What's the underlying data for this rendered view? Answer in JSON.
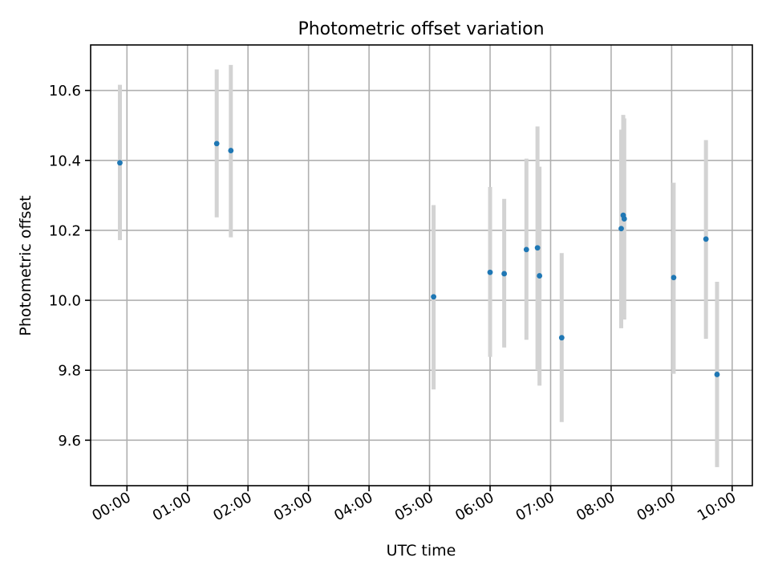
{
  "chart_data": {
    "type": "scatter",
    "title": "Photometric offset variation",
    "xlabel": "UTC time",
    "ylabel": "Photometric offset",
    "xlim": [
      "23:24",
      "10:20"
    ],
    "ylim": [
      9.47,
      10.73
    ],
    "x_ticks": [
      "00:00",
      "01:00",
      "02:00",
      "03:00",
      "04:00",
      "05:00",
      "06:00",
      "07:00",
      "08:00",
      "09:00",
      "10:00"
    ],
    "y_ticks": [
      "9.6",
      "9.8",
      "10.0",
      "10.2",
      "10.4",
      "10.6"
    ],
    "grid": true,
    "marker_color": "#1f77b4",
    "errorbar_color": "#d3d3d3",
    "points": [
      {
        "x": "23:53",
        "y": 10.393,
        "ylo": 10.172,
        "yhi": 10.616
      },
      {
        "x": "01:29",
        "y": 10.448,
        "ylo": 10.237,
        "yhi": 10.66
      },
      {
        "x": "01:43",
        "y": 10.428,
        "ylo": 10.18,
        "yhi": 10.673
      },
      {
        "x": "05:04",
        "y": 10.01,
        "ylo": 9.745,
        "yhi": 10.272
      },
      {
        "x": "06:00",
        "y": 10.08,
        "ylo": 9.838,
        "yhi": 10.324
      },
      {
        "x": "06:14",
        "y": 10.076,
        "ylo": 9.865,
        "yhi": 10.29
      },
      {
        "x": "06:36",
        "y": 10.145,
        "ylo": 9.887,
        "yhi": 10.405
      },
      {
        "x": "06:47",
        "y": 10.15,
        "ylo": 9.8,
        "yhi": 10.497
      },
      {
        "x": "06:49",
        "y": 10.07,
        "ylo": 9.756,
        "yhi": 10.382
      },
      {
        "x": "07:11",
        "y": 9.893,
        "ylo": 9.652,
        "yhi": 10.135
      },
      {
        "x": "08:10",
        "y": 10.205,
        "ylo": 9.92,
        "yhi": 10.488
      },
      {
        "x": "08:12",
        "y": 10.243,
        "ylo": 9.945,
        "yhi": 10.53
      },
      {
        "x": "08:13",
        "y": 10.233,
        "ylo": 9.945,
        "yhi": 10.52
      },
      {
        "x": "09:02",
        "y": 10.065,
        "ylo": 9.79,
        "yhi": 10.336
      },
      {
        "x": "09:34",
        "y": 10.175,
        "ylo": 9.89,
        "yhi": 10.458
      },
      {
        "x": "09:45",
        "y": 9.788,
        "ylo": 9.523,
        "yhi": 10.053
      }
    ]
  }
}
